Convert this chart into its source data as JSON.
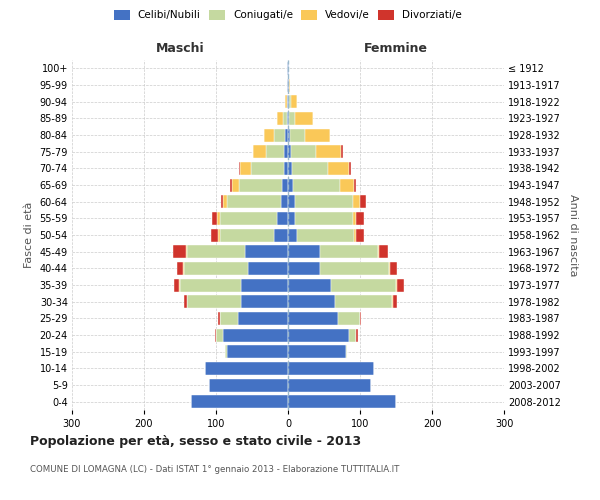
{
  "age_groups": [
    "0-4",
    "5-9",
    "10-14",
    "15-19",
    "20-24",
    "25-29",
    "30-34",
    "35-39",
    "40-44",
    "45-49",
    "50-54",
    "55-59",
    "60-64",
    "65-69",
    "70-74",
    "75-79",
    "80-84",
    "85-89",
    "90-94",
    "95-99",
    "100+"
  ],
  "birth_years": [
    "2008-2012",
    "2003-2007",
    "1998-2002",
    "1993-1997",
    "1988-1992",
    "1983-1987",
    "1978-1982",
    "1973-1977",
    "1968-1972",
    "1963-1967",
    "1958-1962",
    "1953-1957",
    "1948-1952",
    "1943-1947",
    "1938-1942",
    "1933-1937",
    "1928-1932",
    "1923-1927",
    "1918-1922",
    "1913-1917",
    "≤ 1912"
  ],
  "maschi": {
    "celibi": [
      135,
      110,
      115,
      85,
      90,
      70,
      65,
      65,
      55,
      60,
      20,
      15,
      10,
      8,
      6,
      5,
      4,
      2,
      1,
      1,
      1
    ],
    "coniugati": [
      0,
      0,
      0,
      3,
      10,
      25,
      75,
      85,
      90,
      80,
      75,
      80,
      75,
      60,
      45,
      25,
      15,
      5,
      1,
      0,
      0
    ],
    "vedovi": [
      0,
      0,
      0,
      0,
      0,
      0,
      0,
      1,
      1,
      2,
      2,
      3,
      5,
      10,
      15,
      18,
      15,
      8,
      2,
      0,
      0
    ],
    "divorziati": [
      0,
      0,
      0,
      0,
      2,
      2,
      5,
      8,
      8,
      18,
      10,
      8,
      3,
      2,
      2,
      1,
      0,
      0,
      0,
      0,
      0
    ]
  },
  "femmine": {
    "nubili": [
      150,
      115,
      120,
      80,
      85,
      70,
      65,
      60,
      45,
      45,
      12,
      10,
      10,
      7,
      5,
      4,
      3,
      2,
      2,
      1,
      1
    ],
    "coniugate": [
      0,
      0,
      0,
      2,
      10,
      30,
      80,
      90,
      95,
      80,
      80,
      80,
      80,
      65,
      50,
      35,
      20,
      8,
      2,
      0,
      0
    ],
    "vedove": [
      0,
      0,
      0,
      0,
      0,
      0,
      1,
      1,
      1,
      2,
      2,
      5,
      10,
      20,
      30,
      35,
      35,
      25,
      8,
      2,
      0
    ],
    "divorziate": [
      0,
      0,
      0,
      0,
      2,
      2,
      5,
      10,
      10,
      12,
      12,
      10,
      8,
      3,
      3,
      2,
      0,
      0,
      0,
      0,
      0
    ]
  },
  "colors": {
    "celibi": "#4472C4",
    "coniugati": "#C5D9A0",
    "vedovi": "#FAC858",
    "divorziati": "#D0342C"
  },
  "title": "Popolazione per età, sesso e stato civile - 2013",
  "subtitle": "COMUNE DI LOMAGNA (LC) - Dati ISTAT 1° gennaio 2013 - Elaborazione TUTTITALIA.IT",
  "xlabel_left": "Maschi",
  "xlabel_right": "Femmine",
  "ylabel_left": "Fasce di età",
  "ylabel_right": "Anni di nascita",
  "xlim": 300,
  "background_color": "#ffffff",
  "grid_color": "#cccccc"
}
